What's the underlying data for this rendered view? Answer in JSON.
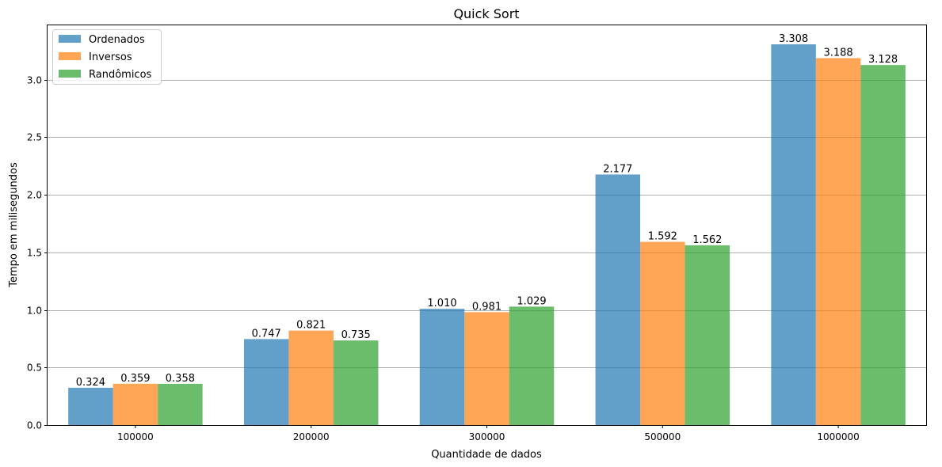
{
  "chart_data": {
    "type": "bar",
    "title": "Quick Sort",
    "xlabel": "Quantidade de dados",
    "ylabel": "Tempo em milisegundos",
    "categories": [
      "100000",
      "200000",
      "300000",
      "500000",
      "1000000"
    ],
    "series": [
      {
        "name": "Ordenados",
        "color": "#1f77b4",
        "values": [
          0.324,
          0.747,
          1.01,
          2.177,
          3.308
        ]
      },
      {
        "name": "Inversos",
        "color": "#ff7f0e",
        "values": [
          0.359,
          0.821,
          0.981,
          1.592,
          3.188
        ]
      },
      {
        "name": "Randômicos",
        "color": "#2ca02c",
        "values": [
          0.358,
          0.735,
          1.029,
          1.562,
          3.128
        ]
      }
    ],
    "yticks": [
      "0.0",
      "0.5",
      "1.0",
      "1.5",
      "2.0",
      "2.5",
      "3.0"
    ],
    "ylim": [
      0,
      3.473
    ],
    "grid": "y",
    "legend_position": "top-left",
    "bar_opacity": 0.7
  }
}
